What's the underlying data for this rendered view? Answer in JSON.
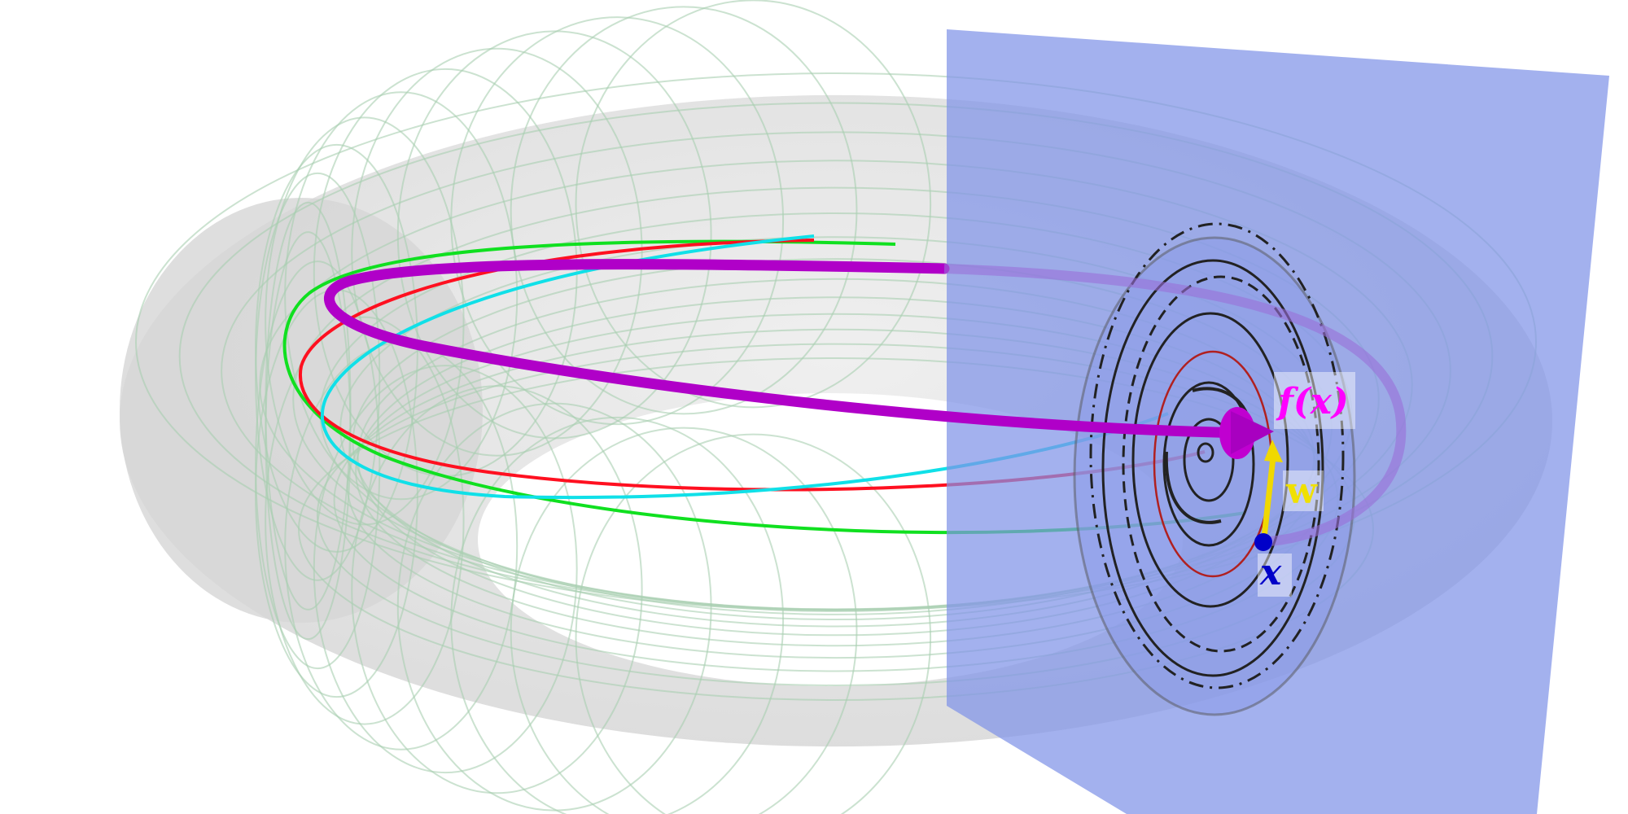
{
  "labels": {
    "image_point": "f(x)",
    "vector": "w",
    "point": "x"
  },
  "colors": {
    "torus": "#c8c8c8",
    "torus_lines": "#a8cfb0",
    "section_plane": "#7f93e8",
    "orbit": "#b000c8",
    "image_label": "#ff00ff",
    "vector": "#f0d800",
    "vector_label": "#f0e000",
    "point": "#0000c8",
    "curve_red": "#ff1020",
    "curve_green": "#10e020",
    "curve_cyan": "#10e0e8",
    "spiral": "#202020"
  }
}
